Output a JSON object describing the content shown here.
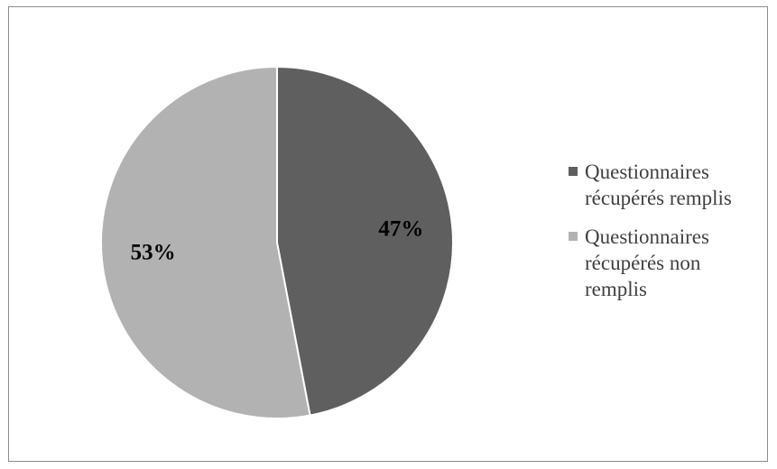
{
  "chart_data": {
    "type": "pie",
    "title": "",
    "start_angle_deg": 0,
    "direction": "clockwise",
    "legend_position": "right",
    "slices": [
      {
        "name": "Questionnaires récupérés remplis",
        "value": 47,
        "label": "47%",
        "color": "#5f5f5f"
      },
      {
        "name": "Questionnaires récupérés non remplis",
        "value": 53,
        "label": "53%",
        "color": "#b2b2b2"
      }
    ]
  }
}
